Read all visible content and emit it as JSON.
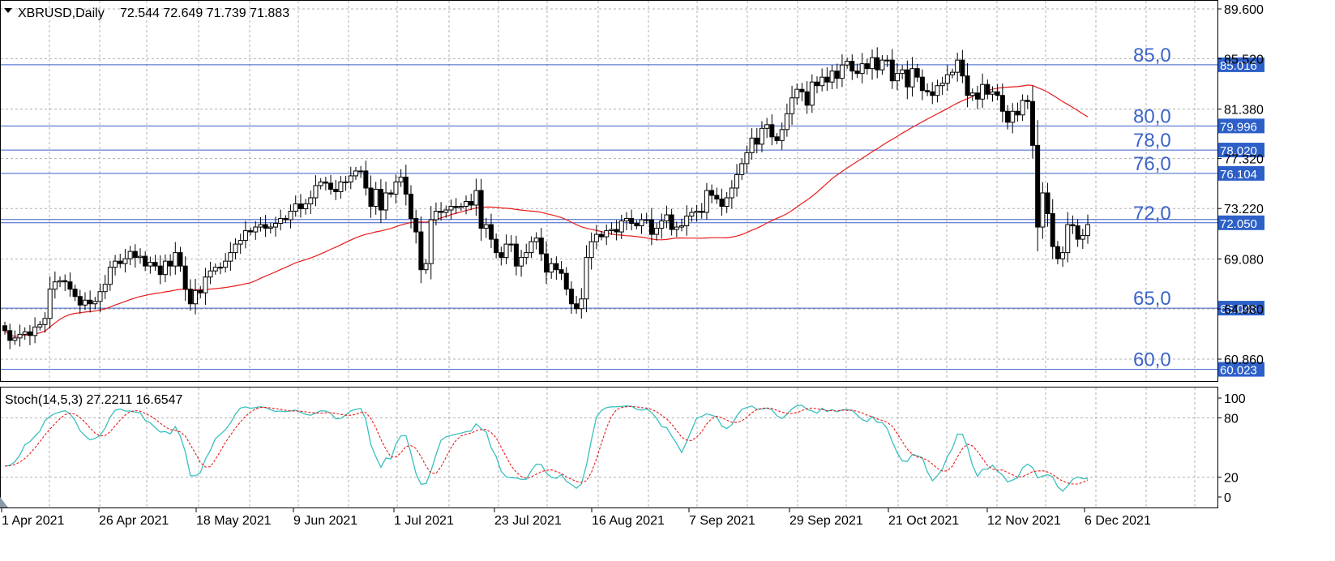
{
  "chart_data": [
    {
      "type": "candlestick",
      "symbol_title": "XBRUSD,Daily",
      "ohlc_header": "72.544 72.649 71.739 71.883",
      "ylim": [
        57.8,
        89.6
      ],
      "y_ticks": [
        "89.600",
        "85.520",
        "81.380",
        "77.320",
        "73.220",
        "69.080",
        "64.980",
        "60.860"
      ],
      "x_ticks": [
        "1 Apr 2021",
        "26 Apr 2021",
        "18 May 2021",
        "9 Jun 2021",
        "1 Jul 2021",
        "23 Jul 2021",
        "16 Aug 2021",
        "7 Sep 2021",
        "29 Sep 2021",
        "21 Oct 2021",
        "12 Nov 2021",
        "6 Dec 2021"
      ],
      "grid": true,
      "levels": [
        {
          "label": "85,0",
          "value": 85.016,
          "price_label": "85.016"
        },
        {
          "label": "80,0",
          "value": 79.996,
          "price_label": "79.996"
        },
        {
          "label": "78,0",
          "value": 78.02,
          "price_label": "78.020"
        },
        {
          "label": "76,0",
          "value": 76.104,
          "price_label": "76.104"
        },
        {
          "label": "72,0",
          "value": 72.05,
          "price_label": "72.050"
        },
        {
          "label": "65,0",
          "value": 65.046,
          "price_label": "65.046"
        },
        {
          "label": "60,0",
          "value": 60.023,
          "price_label": "60.023"
        }
      ],
      "closes": [
        63.2,
        62.4,
        62.6,
        62.9,
        63.1,
        62.8,
        63.5,
        63.7,
        64.2,
        66.6,
        67.2,
        67.3,
        67.2,
        66.6,
        66.0,
        65.3,
        65.7,
        65.4,
        65.6,
        66.4,
        67.0,
        68.4,
        68.9,
        68.7,
        69.1,
        69.7,
        69.2,
        69.3,
        68.5,
        68.8,
        68.5,
        67.8,
        68.9,
        68.5,
        69.6,
        68.5,
        66.6,
        65.4,
        66.5,
        66.3,
        67.6,
        68.1,
        68.4,
        68.4,
        68.9,
        69.6,
        70.3,
        70.6,
        71.4,
        71.3,
        71.7,
        71.9,
        71.6,
        71.7,
        72.0,
        72.4,
        72.3,
        73.0,
        73.6,
        73.2,
        73.6,
        74.1,
        75.1,
        75.4,
        75.3,
        74.8,
        74.6,
        75.4,
        75.4,
        75.9,
        76.3,
        76.3,
        74.9,
        73.4,
        74.8,
        73.1,
        74.5,
        74.4,
        75.4,
        75.8,
        74.4,
        72.4,
        71.3,
        68.2,
        68.7,
        72.3,
        73.0,
        72.9,
        73.1,
        73.4,
        73.3,
        73.4,
        73.8,
        73.5,
        74.7,
        71.6,
        71.9,
        70.7,
        69.6,
        69.2,
        70.3,
        70.3,
        68.5,
        69.2,
        69.6,
        70.5,
        70.8,
        69.5,
        68.0,
        68.7,
        68.2,
        67.9,
        66.6,
        65.4,
        65.0,
        65.8,
        69.2,
        70.5,
        71.1,
        70.9,
        71.4,
        71.5,
        71.3,
        72.2,
        72.4,
        72.0,
        71.8,
        72.3,
        72.3,
        71.1,
        71.6,
        72.2,
        72.7,
        71.5,
        71.7,
        71.8,
        72.6,
        72.9,
        73.0,
        72.9,
        74.7,
        74.3,
        74.0,
        73.4,
        74.1,
        74.9,
        76.0,
        76.9,
        77.8,
        79.0,
        78.5,
        79.8,
        80.1,
        79.1,
        78.8,
        79.7,
        81.0,
        82.3,
        83.0,
        82.8,
        81.7,
        83.6,
        83.3,
        84.0,
        83.6,
        84.5,
        83.9,
        85.0,
        85.3,
        84.5,
        84.3,
        85.1,
        84.7,
        85.6,
        84.6,
        85.4,
        85.4,
        83.7,
        84.3,
        84.6,
        83.2,
        84.7,
        84.0,
        82.9,
        82.8,
        82.5,
        83.3,
        83.5,
        84.2,
        84.4,
        85.4,
        84.1,
        82.5,
        82.7,
        82.2,
        83.4,
        82.6,
        82.8,
        82.5,
        81.2,
        80.3,
        81.2,
        80.9,
        82.1,
        82.0,
        78.4,
        71.7,
        74.5,
        72.8,
        70.1,
        69.1,
        69.6,
        71.9,
        71.8,
        70.7,
        71.0,
        71.9
      ]
    },
    {
      "type": "line",
      "indicator_title": "Stoch(14,5,3) 27.2211 16.6547",
      "ylim": [
        0,
        100
      ],
      "y_ticks": [
        "100",
        "80",
        "20",
        "0"
      ],
      "levels": [
        80,
        20
      ]
    }
  ],
  "colors": {
    "bull": "#ffffff",
    "bear": "#000000",
    "level_line": "#3c5fc8",
    "level_text": "#3c64c8",
    "price_label_bg": "#2c5fc8",
    "ma": "#e81b1b",
    "stoch_main": "#3bbfbf",
    "stoch_signal": "#e81b1b",
    "grid": "#b0b0b0"
  }
}
